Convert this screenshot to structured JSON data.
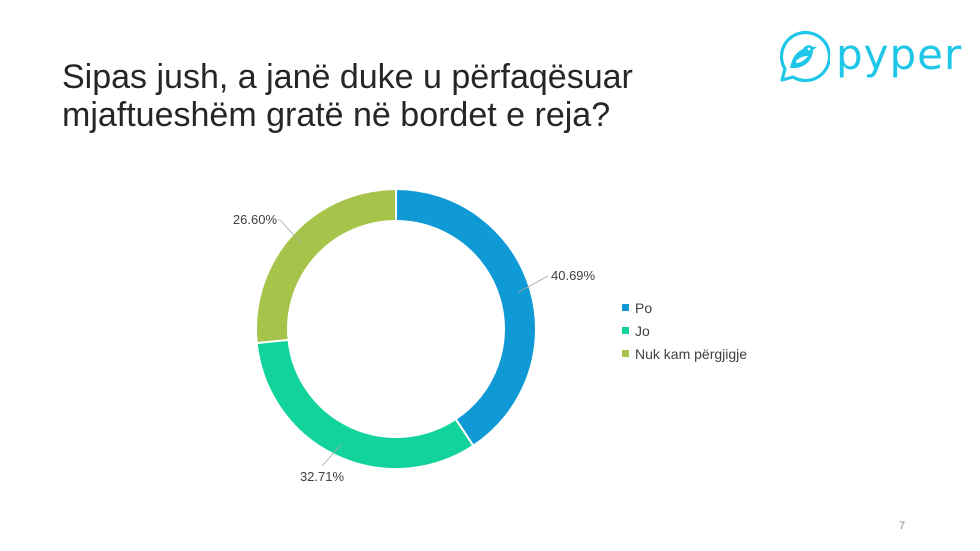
{
  "slide": {
    "title_line1": "Sipas jush, a janë duke u përfaqësuar",
    "title_line2": "mjaftueshëm gratë në bordet e reja?",
    "page_number": "7"
  },
  "logo": {
    "text": "pyper",
    "color": "#1ec6e8",
    "icon": "bird-icon"
  },
  "chart_data": {
    "type": "pie",
    "variant": "doughnut",
    "title": "",
    "categories": [
      "Po",
      "Jo",
      "Nuk kam përgjigje"
    ],
    "values": [
      40.69,
      32.71,
      26.6
    ],
    "labels": [
      "40.69%",
      "32.71%",
      "26.60%"
    ],
    "colors": [
      "#0f9ad6",
      "#12d39c",
      "#a6c34a"
    ],
    "start_angle_deg": 0,
    "direction": "clockwise",
    "legend_position": "right"
  }
}
